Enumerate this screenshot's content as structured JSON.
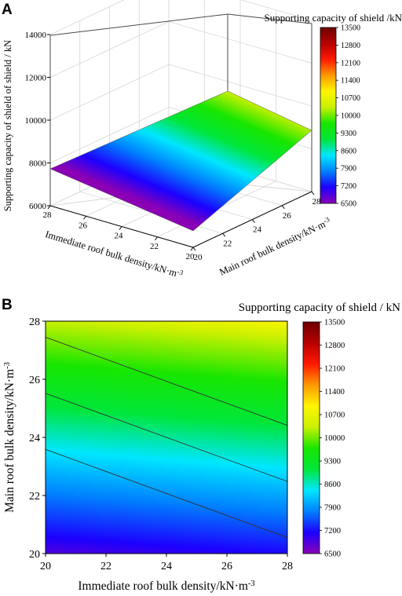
{
  "chart_data": [
    {
      "panel": "A",
      "type": "surface",
      "x": {
        "label": "Immediate roof bulk density/kN·m⁻³",
        "range": [
          20,
          28
        ],
        "ticks": [
          "28",
          "26",
          "24",
          "22",
          "20"
        ]
      },
      "y": {
        "label": "Main roof bulk density/kN·m⁻³",
        "range": [
          20,
          28
        ],
        "ticks": [
          "20",
          "22",
          "24",
          "26",
          "28"
        ]
      },
      "z": {
        "label": "Supporting capacity of shield of shield / kN",
        "range": [
          6000,
          14000
        ],
        "ticks": [
          "6000",
          "8000",
          "10000",
          "12000",
          "14000"
        ]
      },
      "corner_values": [
        {
          "x": 20,
          "y": 20,
          "z": 6600
        },
        {
          "x": 28,
          "y": 20,
          "z": 7700
        },
        {
          "x": 20,
          "y": 28,
          "z": 9500
        },
        {
          "x": 28,
          "y": 28,
          "z": 10600
        }
      ],
      "colorbar": {
        "title": "Supporting capacity of shield /kN",
        "ticks": [
          "13500",
          "12800",
          "12100",
          "11400",
          "10700",
          "10000",
          "9300",
          "8600",
          "7900",
          "7200",
          "6500"
        ]
      },
      "grid": true
    },
    {
      "panel": "B",
      "type": "heatmap",
      "x": {
        "label": "Immediate roof bulk density/kN·m⁻³",
        "range": [
          20,
          28
        ],
        "ticks": [
          "20",
          "22",
          "24",
          "26",
          "28"
        ]
      },
      "y": {
        "label": "Main roof bulk density/kN·m⁻³",
        "range": [
          20,
          28
        ],
        "ticks": [
          "20",
          "22",
          "24",
          "26",
          "28"
        ]
      },
      "corner_values": [
        {
          "x": 20,
          "y": 20,
          "z": 6600
        },
        {
          "x": 28,
          "y": 20,
          "z": 7700
        },
        {
          "x": 20,
          "y": 28,
          "z": 9500
        },
        {
          "x": 28,
          "y": 28,
          "z": 10600
        }
      ],
      "contour_levels": [
        7900,
        8600,
        9300
      ],
      "colorbar": {
        "title": "Supporting capacity of shield / kN",
        "ticks": [
          "13500",
          "12800",
          "12100",
          "11400",
          "10700",
          "10000",
          "9300",
          "8600",
          "7900",
          "7200",
          "6500"
        ]
      },
      "grid": false
    }
  ],
  "colormap": [
    "#8b00b4",
    "#1c00ff",
    "#0080ff",
    "#00e6ff",
    "#00e63a",
    "#17e600",
    "#c8f000",
    "#fff500",
    "#ff9900",
    "#ff1a00",
    "#b80000",
    "#6e0000"
  ],
  "colormap_range": [
    6500,
    13500
  ],
  "panel_labels": [
    "A",
    "B"
  ]
}
